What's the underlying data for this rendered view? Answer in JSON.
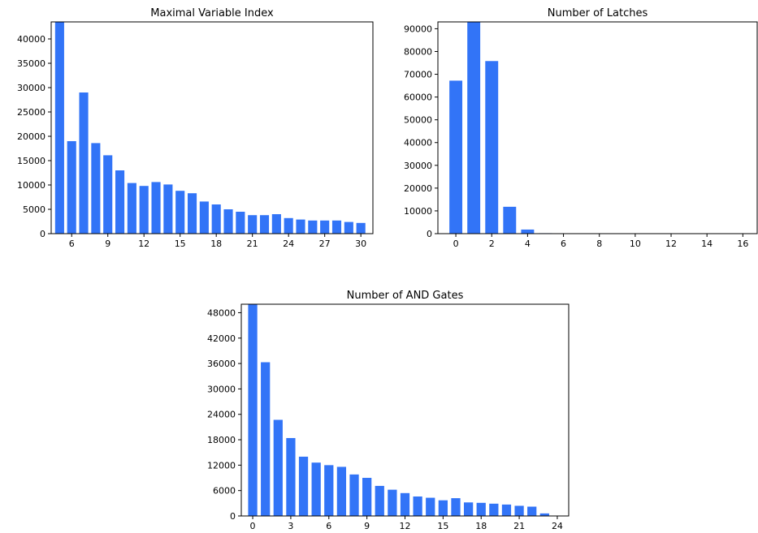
{
  "chart_data": [
    {
      "type": "bar",
      "title": "Maximal Variable Index",
      "color": "#3274f7",
      "xlim": [
        4.3,
        31.0
      ],
      "ylim": [
        0,
        43500
      ],
      "xticks": [
        6,
        9,
        12,
        15,
        18,
        21,
        24,
        27,
        30
      ],
      "yticks": [
        0,
        5000,
        10000,
        15000,
        20000,
        25000,
        30000,
        35000,
        40000
      ],
      "x": [
        5,
        6,
        7,
        8,
        9,
        10,
        11,
        12,
        13,
        14,
        15,
        16,
        17,
        18,
        19,
        20,
        21,
        22,
        23,
        24,
        25,
        26,
        27,
        28,
        29,
        30
      ],
      "values": [
        43500,
        19000,
        29000,
        18600,
        16100,
        13000,
        10400,
        9800,
        10600,
        10100,
        8800,
        8300,
        6600,
        6000,
        5000,
        4500,
        3800,
        3800,
        4000,
        3200,
        2900,
        2700,
        2700,
        2700,
        2400,
        2200
      ]
    },
    {
      "type": "bar",
      "title": "Number of Latches",
      "color": "#3274f7",
      "xlim": [
        -1.0,
        16.8
      ],
      "ylim": [
        0,
        93000
      ],
      "xticks": [
        0,
        2,
        4,
        6,
        8,
        10,
        12,
        14,
        16
      ],
      "yticks": [
        0,
        10000,
        20000,
        30000,
        40000,
        50000,
        60000,
        70000,
        80000,
        90000
      ],
      "x": [
        0,
        1,
        2,
        3,
        4,
        5,
        6,
        7,
        8,
        9,
        10,
        11,
        12,
        13,
        14,
        15,
        16
      ],
      "values": [
        67200,
        93000,
        75800,
        11800,
        1800,
        200,
        150,
        100,
        80,
        70,
        60,
        50,
        40,
        40,
        30,
        30,
        30
      ]
    },
    {
      "type": "bar",
      "title": "Number of AND Gates",
      "color": "#3274f7",
      "xlim": [
        -0.9,
        24.9
      ],
      "ylim": [
        0,
        50000
      ],
      "xticks": [
        0,
        3,
        6,
        9,
        12,
        15,
        18,
        21,
        24
      ],
      "yticks": [
        0,
        6000,
        12000,
        18000,
        24000,
        30000,
        36000,
        42000,
        48000
      ],
      "x": [
        0,
        1,
        2,
        3,
        4,
        5,
        6,
        7,
        8,
        9,
        10,
        11,
        12,
        13,
        14,
        15,
        16,
        17,
        18,
        19,
        20,
        21,
        22,
        23
      ],
      "values": [
        50000,
        36300,
        22700,
        18400,
        14000,
        12600,
        12000,
        11600,
        9800,
        9000,
        7100,
        6200,
        5400,
        4600,
        4300,
        3700,
        4200,
        3200,
        3100,
        2900,
        2700,
        2400,
        2200,
        600
      ]
    }
  ]
}
